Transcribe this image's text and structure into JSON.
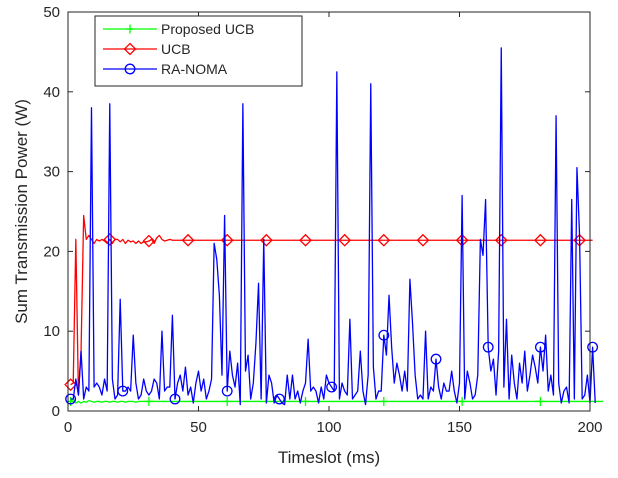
{
  "chart_data": {
    "type": "line",
    "title": "",
    "xlabel": "Timeslot (ms)",
    "ylabel": "Sum Transmission Power (W)",
    "xlim": [
      0,
      200
    ],
    "ylim": [
      0,
      50
    ],
    "xticks": [
      0,
      50,
      100,
      150,
      200
    ],
    "yticks": [
      0,
      10,
      20,
      30,
      40,
      50
    ],
    "grid": false,
    "legend_position": "top-left",
    "series": [
      {
        "name": "Proposed UCB",
        "color": "#00ff00",
        "marker": "plus",
        "marker_every": 30,
        "marker_offset": 1,
        "values": [
          1.2,
          1.5,
          1.0,
          1.2,
          1.0,
          1.2,
          1.1,
          1.3,
          1.2,
          1.1,
          1.2,
          1.2,
          1.1,
          1.2,
          1.2,
          1.1,
          1.2,
          1.2,
          1.1,
          1.2,
          1.2,
          1.1,
          1.2,
          1.2,
          1.2,
          1.1,
          1.2,
          1.2,
          1.2,
          1.2,
          1.2,
          1.2,
          1.2,
          1.2,
          1.2,
          1.2,
          1.2,
          1.2,
          1.2,
          1.2,
          1.2,
          1.2,
          1.2,
          1.2,
          1.2,
          1.2,
          1.2,
          1.2,
          1.2,
          1.2,
          1.2,
          1.2,
          1.2,
          1.2,
          1.2,
          1.2,
          1.2,
          1.2,
          1.2,
          1.2,
          1.2,
          1.2,
          1.2,
          1.2,
          1.2,
          1.2,
          1.2,
          1.2,
          1.2,
          1.2,
          1.2,
          1.2,
          1.2,
          1.2,
          1.2,
          1.2,
          1.2,
          1.2,
          1.2,
          1.2,
          1.2,
          1.2,
          1.2,
          1.2,
          1.2,
          1.2,
          1.2,
          1.2,
          1.2,
          1.2,
          1.2,
          1.2,
          1.2,
          1.2,
          1.2,
          1.2,
          1.2,
          1.2,
          1.2,
          1.2,
          1.2,
          1.2,
          1.2,
          1.2,
          1.2,
          1.2,
          1.2,
          1.2,
          1.2,
          1.2,
          1.2,
          1.2,
          1.2,
          1.2,
          1.2,
          1.2,
          1.2,
          1.2,
          1.2,
          1.2,
          1.2,
          1.2,
          1.2,
          1.2,
          1.2,
          1.2,
          1.2,
          1.2,
          1.2,
          1.2,
          1.2,
          1.2,
          1.2,
          1.2,
          1.2,
          1.2,
          1.2,
          1.2,
          1.2,
          1.2,
          1.2,
          1.2,
          1.2,
          1.2,
          1.2,
          1.2,
          1.2,
          1.2,
          1.2,
          1.2,
          1.2,
          1.2,
          1.2,
          1.2,
          1.2,
          1.2,
          1.2,
          1.2,
          1.2,
          1.2,
          1.2,
          1.2,
          1.2,
          1.2,
          1.2,
          1.2,
          1.2,
          1.2,
          1.2,
          1.2,
          1.2,
          1.2,
          1.2,
          1.2,
          1.2,
          1.2,
          1.2,
          1.2,
          1.2,
          1.2,
          1.2,
          1.2,
          1.2,
          1.2,
          1.2,
          1.2,
          1.2,
          1.2,
          1.2,
          1.2,
          1.2,
          1.2,
          1.2,
          1.2,
          1.2,
          1.2,
          1.2,
          1.2,
          1.2,
          1.2,
          1.2,
          1.2,
          1.2,
          1.2,
          1.2
        ]
      },
      {
        "name": "UCB",
        "color": "#ff0000",
        "marker": "diamond",
        "marker_every": 15,
        "marker_offset": 1,
        "values": [
          3.3,
          3.5,
          21.5,
          2.0,
          7.5,
          24.5,
          21.5,
          22.0,
          21.5,
          21.0,
          21.5,
          21.3,
          21.5,
          21.3,
          21.0,
          21.5,
          21.0,
          21.5,
          21.5,
          21.2,
          21.5,
          21.0,
          21.4,
          21.2,
          21.3,
          21.0,
          21.3,
          21.0,
          21.2,
          21.2,
          21.3,
          21.5,
          21.0,
          21.7,
          22.0,
          21.5,
          21.3,
          21.4,
          21.5,
          21.4,
          21.4,
          21.4,
          21.4,
          21.4,
          21.4,
          21.4,
          21.4,
          21.4,
          21.4,
          21.4,
          21.4,
          21.4,
          21.4,
          21.4,
          21.4,
          21.4,
          21.4,
          21.4,
          21.4,
          21.4,
          21.4,
          21.4,
          21.4,
          21.4,
          21.4,
          21.4,
          21.4,
          21.4,
          21.4,
          21.4,
          21.4,
          21.4,
          21.4,
          21.4,
          21.4,
          21.4,
          21.4,
          21.4,
          21.4,
          21.4,
          21.4,
          21.4,
          21.4,
          21.4,
          21.4,
          21.4,
          21.4,
          21.4,
          21.4,
          21.4,
          21.4,
          21.4,
          21.4,
          21.4,
          21.4,
          21.4,
          21.4,
          21.4,
          21.4,
          21.4,
          21.4,
          21.4,
          21.4,
          21.4,
          21.4,
          21.4,
          21.4,
          21.4,
          21.4,
          21.4,
          21.4,
          21.4,
          21.4,
          21.4,
          21.4,
          21.4,
          21.4,
          21.4,
          21.4,
          21.4,
          21.4,
          21.4,
          21.4,
          21.4,
          21.4,
          21.4,
          21.4,
          21.4,
          21.4,
          21.4,
          21.4,
          21.4,
          21.4,
          21.4,
          21.4,
          21.4,
          21.4,
          21.4,
          21.4,
          21.4,
          21.4,
          21.4,
          21.4,
          21.4,
          21.4,
          21.4,
          21.4,
          21.4,
          21.4,
          21.4,
          21.4,
          21.4,
          21.4,
          21.4,
          21.4,
          21.4,
          21.4,
          21.4,
          21.4,
          21.4,
          21.4,
          21.4,
          21.4,
          21.4,
          21.4,
          21.4,
          21.4,
          21.4,
          21.4,
          21.4,
          21.4,
          21.4,
          21.4,
          21.4,
          21.4,
          21.4,
          21.4,
          21.4,
          21.4,
          21.4,
          21.4,
          21.4,
          21.4,
          21.4,
          21.4,
          21.4,
          21.4,
          21.4,
          21.4,
          21.4,
          21.4,
          21.4,
          21.4,
          21.4,
          21.4,
          21.4,
          21.4,
          21.4,
          21.4,
          21.4,
          21.4
        ]
      },
      {
        "name": "RA-NOMA",
        "color": "#0000ff",
        "marker": "circle",
        "marker_every": 20,
        "marker_offset": 1,
        "values": [
          1.5,
          1.5,
          4.0,
          2.0,
          7.5,
          1.5,
          3.0,
          2.5,
          38.0,
          3.0,
          3.5,
          3.0,
          2.0,
          4.0,
          2.5,
          38.5,
          4.0,
          1.5,
          2.0,
          14.0,
          2.5,
          2.5,
          3.0,
          2.5,
          9.5,
          3.5,
          1.5,
          2.0,
          4.0,
          2.5,
          2.0,
          2.5,
          4.0,
          3.5,
          1.5,
          10.0,
          2.5,
          3.0,
          3.0,
          12.0,
          1.5,
          3.5,
          4.5,
          2.5,
          5.5,
          2.0,
          3.0,
          1.0,
          3.5,
          5.0,
          2.5,
          4.0,
          1.5,
          2.5,
          4.0,
          21.0,
          19.0,
          14.5,
          4.5,
          24.5,
          2.5,
          7.5,
          4.5,
          3.0,
          6.0,
          0.8,
          38.5,
          5.0,
          7.0,
          1.5,
          3.5,
          8.5,
          16.0,
          1.5,
          21.5,
          1.0,
          4.5,
          3.5,
          1.0,
          2.0,
          1.5,
          1.0,
          0.8,
          4.5,
          1.5,
          4.5,
          1.5,
          2.5,
          1.0,
          2.5,
          3.5,
          9.0,
          2.5,
          3.0,
          2.5,
          1.0,
          3.0,
          1.5,
          4.5,
          3.5,
          3.0,
          2.5,
          42.5,
          1.5,
          3.5,
          2.5,
          2.0,
          11.5,
          1.5,
          2.0,
          2.5,
          7.5,
          2.5,
          0.8,
          4.5,
          41.0,
          5.5,
          1.5,
          2.5,
          2.5,
          9.5,
          7.0,
          14.5,
          8.0,
          3.5,
          6.0,
          4.5,
          2.5,
          5.0,
          2.5,
          16.5,
          11.0,
          4.5,
          1.5,
          2.0,
          1.5,
          10.0,
          1.5,
          3.0,
          2.5,
          6.5,
          3.0,
          1.5,
          3.5,
          2.5,
          2.5,
          5.0,
          2.5,
          1.0,
          3.5,
          27.0,
          1.5,
          5.0,
          3.5,
          1.5,
          2.0,
          4.5,
          21.5,
          19.5,
          26.5,
          8.0,
          5.0,
          6.5,
          2.0,
          7.5,
          45.5,
          3.0,
          11.5,
          1.5,
          7.0,
          3.5,
          1.5,
          6.0,
          3.5,
          7.5,
          2.5,
          4.5,
          7.0,
          5.5,
          3.5,
          8.0,
          5.0,
          9.5,
          2.5,
          4.5,
          2.0,
          37.0,
          3.5,
          1.0,
          2.5,
          3.0,
          1.0,
          26.5,
          1.5,
          30.5,
          22.0,
          1.5,
          2.0,
          4.5,
          1.0,
          8.0,
          1.0
        ]
      }
    ]
  }
}
